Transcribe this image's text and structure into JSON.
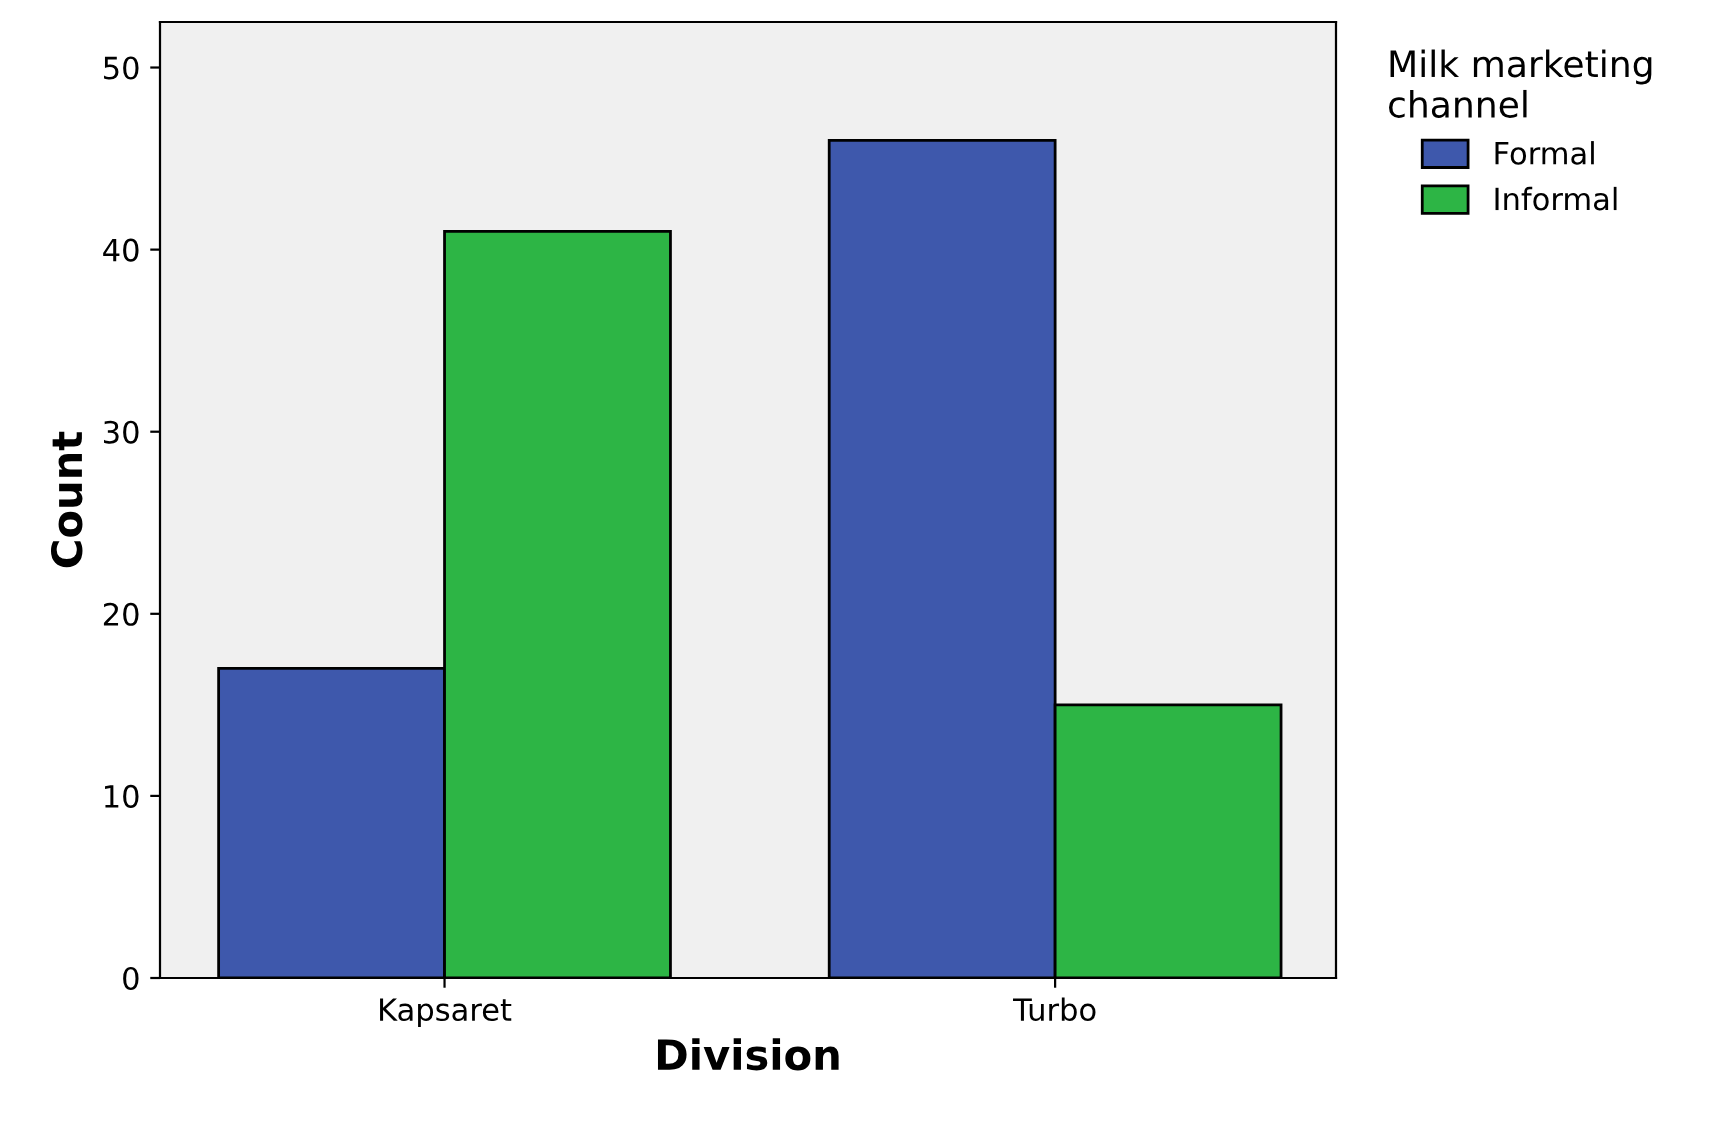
{
  "chart_data": {
    "type": "bar",
    "xlabel": "Division",
    "ylabel": "Count",
    "legend_title": "Milk marketing\nchannel",
    "categories": [
      "Kapsaret",
      "Turbo"
    ],
    "series": [
      {
        "name": "Formal",
        "color": "#3e58ac",
        "values": [
          17,
          46
        ]
      },
      {
        "name": "Informal",
        "color": "#2db545",
        "values": [
          41,
          15
        ]
      }
    ],
    "ylim": [
      0,
      52.5
    ],
    "yticks": [
      0,
      10,
      20,
      30,
      40,
      50
    ],
    "grid": false,
    "legend": "top right"
  }
}
